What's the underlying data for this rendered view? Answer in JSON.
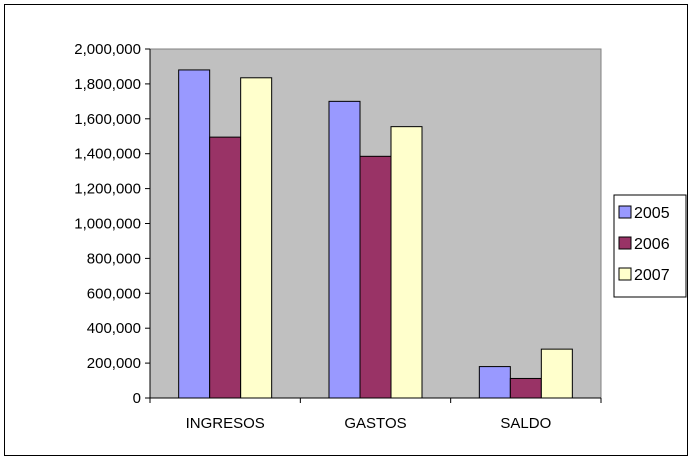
{
  "chart_data": {
    "type": "bar",
    "title": "",
    "xlabel": "",
    "ylabel": "",
    "categories": [
      "INGRESOS",
      "GASTOS",
      "SALDO"
    ],
    "series": [
      {
        "name": "2005",
        "values": [
          1880000,
          1700000,
          180000
        ],
        "color": "#9999ff"
      },
      {
        "name": "2006",
        "values": [
          1495000,
          1385000,
          112000
        ],
        "color": "#993366"
      },
      {
        "name": "2007",
        "values": [
          1835000,
          1555000,
          280000
        ],
        "color": "#ffffcc"
      }
    ],
    "ylim": [
      0,
      2000000
    ],
    "yticks": [
      0,
      200000,
      400000,
      600000,
      800000,
      1000000,
      1200000,
      1400000,
      1600000,
      1800000,
      2000000
    ],
    "ytick_labels": [
      "0",
      "200,000",
      "400,000",
      "600,000",
      "800,000",
      "1,000,000",
      "1,200,000",
      "1,400,000",
      "1,600,000",
      "1,800,000",
      "2,000,000"
    ],
    "plot_background": "#c0c0c0",
    "grid": false,
    "legend_position": "right"
  }
}
